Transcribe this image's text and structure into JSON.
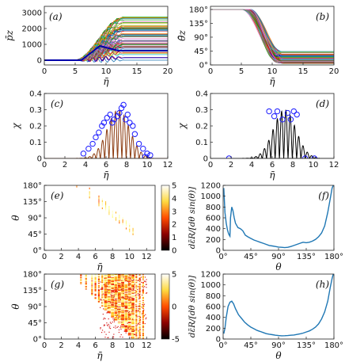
{
  "chart_data": [
    {
      "panel": "a",
      "type": "line",
      "panel_label": "(a)",
      "xlabel": "η̄",
      "ylabel": "p̄z",
      "xlim": [
        0,
        20
      ],
      "ylim": [
        -300,
        3400
      ],
      "xticks": [
        0,
        5,
        10,
        15,
        20
      ],
      "yticks": [
        0,
        1000,
        2000,
        3000
      ],
      "xtick_labels": [
        "0",
        "5",
        "10",
        "15",
        "20"
      ],
      "ytick_labels": [
        "0",
        "1000",
        "2000",
        "3000"
      ],
      "description_values": {
        "series_count": 60,
        "final_value_range": [
          0,
          2900
        ],
        "rise_start_x": 5,
        "plateau_x": 13,
        "ripple_x": 9
      }
    },
    {
      "panel": "b",
      "type": "line",
      "panel_label": "(b)",
      "xlabel": "η̄",
      "ylabel": "θ̄z",
      "xlim": [
        0,
        20
      ],
      "ylim": [
        0,
        190
      ],
      "xticks": [
        0,
        5,
        10,
        15,
        20
      ],
      "yticks": [
        0,
        45,
        90,
        135,
        180
      ],
      "xtick_labels": [
        "0",
        "5",
        "10",
        "15",
        "20"
      ],
      "ytick_labels": [
        "0°",
        "45°",
        "90°",
        "135°",
        "180°"
      ],
      "description_values": {
        "series_count": 60,
        "initial_value": 180,
        "final_value_range": [
          5,
          45
        ],
        "drop_start_x": 5,
        "drop_end_x": 12
      }
    },
    {
      "panel": "c",
      "type": "line",
      "panel_label": "(c)",
      "xlabel": "η̄",
      "ylabel": "χ",
      "xlim": [
        0,
        12
      ],
      "ylim": [
        0,
        0.4
      ],
      "xticks": [
        0,
        2,
        4,
        6,
        8,
        10,
        12
      ],
      "yticks": [
        0,
        0.1,
        0.2,
        0.3,
        0.4
      ],
      "xtick_labels": [
        "0",
        "2",
        "4",
        "6",
        "8",
        "10",
        "12"
      ],
      "ytick_labels": [
        "0",
        "0.1",
        "0.2",
        "0.3",
        "0.4"
      ],
      "markers": [
        [
          3.8,
          0.03
        ],
        [
          4.3,
          0.06
        ],
        [
          4.7,
          0.09
        ],
        [
          5.0,
          0.13
        ],
        [
          5.3,
          0.16
        ],
        [
          5.6,
          0.2
        ],
        [
          5.8,
          0.22
        ],
        [
          6.1,
          0.25
        ],
        [
          6.4,
          0.27
        ],
        [
          6.6,
          0.22
        ],
        [
          6.8,
          0.24
        ],
        [
          7.1,
          0.26
        ],
        [
          7.3,
          0.28
        ],
        [
          7.5,
          0.31
        ],
        [
          7.7,
          0.33
        ],
        [
          7.9,
          0.24
        ],
        [
          8.1,
          0.27
        ],
        [
          8.3,
          0.22
        ],
        [
          8.6,
          0.2
        ],
        [
          8.8,
          0.15
        ],
        [
          9.2,
          0.09
        ],
        [
          9.6,
          0.06
        ],
        [
          10.0,
          0.03
        ],
        [
          10.3,
          0.02
        ],
        [
          9.8,
          0.01
        ]
      ]
    },
    {
      "panel": "d",
      "type": "line",
      "panel_label": "(d)",
      "xlabel": "η̄",
      "ylabel": "χ",
      "xlim": [
        0,
        12
      ],
      "ylim": [
        0,
        0.4
      ],
      "xticks": [
        0,
        2,
        4,
        6,
        8,
        10,
        12
      ],
      "yticks": [
        0,
        0.1,
        0.2,
        0.3,
        0.4
      ],
      "xtick_labels": [
        "0",
        "2",
        "4",
        "6",
        "8",
        "10",
        "12"
      ],
      "ytick_labels": [
        "0",
        "0.1",
        "0.2",
        "0.3",
        "0.4"
      ],
      "markers": [
        [
          1.8,
          0.0
        ],
        [
          5.7,
          0.29
        ],
        [
          6.2,
          0.26
        ],
        [
          6.5,
          0.29
        ],
        [
          7.0,
          0.24
        ],
        [
          7.5,
          0.28
        ],
        [
          7.8,
          0.24
        ],
        [
          8.1,
          0.29
        ],
        [
          8.4,
          0.27
        ],
        [
          9.2,
          0.0
        ],
        [
          10.1,
          0.0
        ]
      ]
    },
    {
      "panel": "e",
      "type": "heatmap",
      "panel_label": "(e)",
      "xlabel": "η̄",
      "ylabel": "θ",
      "xlim": [
        0,
        13
      ],
      "ylim": [
        0,
        180
      ],
      "xticks": [
        0,
        2,
        4,
        6,
        8,
        10,
        12
      ],
      "yticks": [
        0,
        45,
        90,
        135,
        180
      ],
      "xtick_labels": [
        "0",
        "2",
        "4",
        "6",
        "8",
        "10",
        "12"
      ],
      "ytick_labels": [
        "0°",
        "45°",
        "90°",
        "135°",
        "180°"
      ],
      "colorbar": {
        "min": 0,
        "max": 5,
        "ticks": [
          "0",
          "1",
          "2",
          "3",
          "4",
          "5"
        ]
      }
    },
    {
      "panel": "f",
      "type": "line",
      "panel_label": "(f)",
      "xlabel": "θ",
      "ylabel": "dε̄R/[dθ sin(θ)]",
      "xlim": [
        0,
        180
      ],
      "ylim": [
        0,
        1200
      ],
      "xticks": [
        0,
        45,
        90,
        135,
        180
      ],
      "yticks": [
        0,
        200,
        400,
        600,
        800,
        1000,
        1200
      ],
      "xtick_labels": [
        "0°",
        "45°",
        "90°",
        "135°",
        "180°"
      ],
      "ytick_labels": [
        "0",
        "200",
        "400",
        "600",
        "800",
        "1000",
        "1200"
      ],
      "x": [
        1,
        3,
        5,
        7,
        9,
        11,
        12,
        14,
        16,
        18,
        20,
        24,
        28,
        32,
        36,
        40,
        45,
        50,
        55,
        60,
        65,
        70,
        75,
        80,
        85,
        90,
        95,
        100,
        105,
        110,
        115,
        120,
        125,
        130,
        135,
        140,
        145,
        150,
        155,
        160,
        165,
        170,
        174,
        177,
        179
      ],
      "y": [
        1150,
        700,
        500,
        380,
        300,
        260,
        600,
        800,
        730,
        600,
        500,
        420,
        400,
        360,
        280,
        250,
        220,
        190,
        170,
        150,
        130,
        110,
        90,
        80,
        70,
        60,
        55,
        50,
        55,
        70,
        90,
        110,
        130,
        150,
        140,
        150,
        170,
        200,
        250,
        320,
        450,
        700,
        950,
        1150,
        1200
      ]
    },
    {
      "panel": "g",
      "type": "heatmap",
      "panel_label": "(g)",
      "xlabel": "η̄",
      "ylabel": "θ",
      "xlim": [
        0,
        13
      ],
      "ylim": [
        0,
        180
      ],
      "xticks": [
        0,
        2,
        4,
        6,
        8,
        10,
        12
      ],
      "yticks": [
        0,
        45,
        90,
        135,
        180
      ],
      "xtick_labels": [
        "0",
        "2",
        "4",
        "6",
        "8",
        "10",
        "12"
      ],
      "ytick_labels": [
        "0°",
        "45°",
        "90°",
        "135°",
        "180°"
      ],
      "colorbar": {
        "min": -5,
        "max": 5,
        "ticks": [
          "-5",
          "0",
          "5"
        ]
      }
    },
    {
      "panel": "h",
      "type": "line",
      "panel_label": "(h)",
      "xlabel": "θ",
      "ylabel": "dε̄R/[dθ sin(θ)]",
      "xlim": [
        0,
        180
      ],
      "ylim": [
        0,
        1200
      ],
      "xticks": [
        0,
        45,
        90,
        135,
        180
      ],
      "yticks": [
        0,
        200,
        400,
        600,
        800,
        1000,
        1200
      ],
      "xtick_labels": [
        "0°",
        "45°",
        "90°",
        "135°",
        "180°"
      ],
      "ytick_labels": [
        "0",
        "200",
        "400",
        "600",
        "800",
        "1000",
        "1200"
      ],
      "x": [
        1,
        3,
        5,
        8,
        11,
        14,
        17,
        20,
        25,
        30,
        35,
        40,
        45,
        50,
        55,
        60,
        65,
        70,
        75,
        80,
        85,
        90,
        95,
        100,
        105,
        110,
        115,
        120,
        125,
        130,
        135,
        140,
        145,
        150,
        155,
        160,
        165,
        170,
        174,
        177,
        179
      ],
      "y": [
        100,
        200,
        400,
        600,
        680,
        700,
        650,
        560,
        450,
        380,
        310,
        260,
        220,
        190,
        160,
        140,
        120,
        100,
        90,
        80,
        70,
        65,
        60,
        62,
        65,
        70,
        75,
        85,
        95,
        110,
        130,
        150,
        180,
        220,
        280,
        370,
        500,
        700,
        950,
        1120,
        1200
      ]
    }
  ]
}
